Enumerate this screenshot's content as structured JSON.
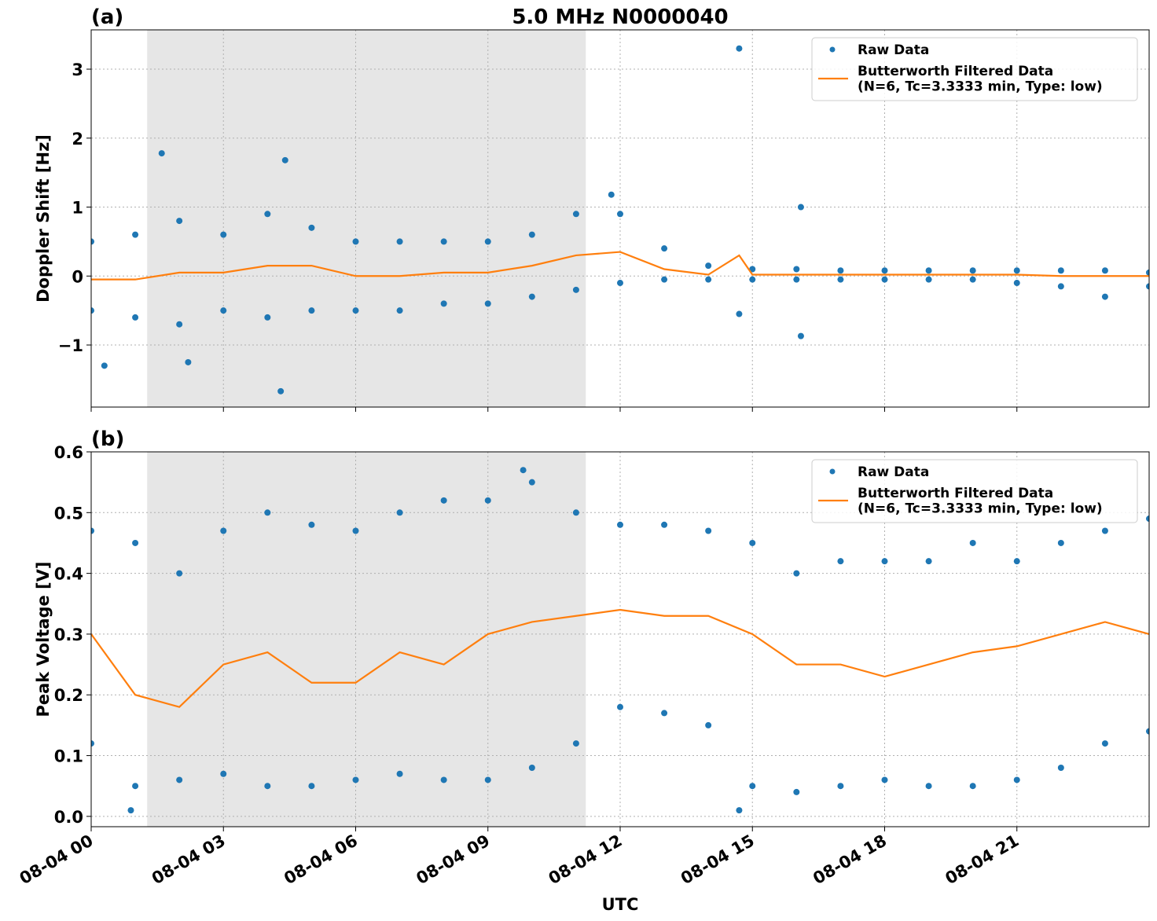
{
  "chart_data": [
    {
      "type": "scatter",
      "title": "5.0 MHz N0000040",
      "panel_label": "(a)",
      "ylabel": "Doppler Shift [Hz]",
      "xlim": [
        0,
        24
      ],
      "xticks": [
        0,
        3,
        6,
        9,
        12,
        15,
        18,
        21
      ],
      "ylim": [
        -1.9,
        3.57
      ],
      "yticks": [
        {
          "value": -1,
          "label": "−1"
        },
        0,
        1,
        2,
        3
      ],
      "shade": [
        1.27,
        11.22
      ],
      "grid": true,
      "legend": "upper right",
      "series": [
        {
          "name": "Raw Data",
          "color": "#1f77b4",
          "kind": "scatter",
          "x": [
            0,
            0,
            1,
            1,
            2,
            2,
            3,
            3,
            4,
            4,
            5,
            5,
            6,
            6,
            7,
            7,
            8,
            8,
            9,
            9,
            10,
            10,
            11,
            11,
            12,
            12,
            13,
            13,
            14,
            14,
            15,
            15,
            16,
            16,
            17,
            17,
            18,
            18,
            19,
            19,
            20,
            20,
            21,
            21,
            22,
            22,
            23,
            23,
            24,
            24,
            1.6,
            4.4,
            4.3,
            14.7,
            14.7,
            0.3,
            16.1,
            16.1,
            2.2,
            11.8
          ],
          "values": [
            0.5,
            -0.5,
            0.6,
            -0.6,
            0.8,
            -0.7,
            0.6,
            -0.5,
            0.9,
            -0.6,
            0.7,
            -0.5,
            0.5,
            -0.5,
            0.5,
            -0.5,
            0.5,
            -0.4,
            0.5,
            -0.4,
            0.6,
            -0.3,
            0.9,
            -0.2,
            0.9,
            -0.1,
            0.4,
            -0.05,
            0.15,
            -0.05,
            0.1,
            -0.05,
            0.1,
            -0.05,
            0.08,
            -0.05,
            0.08,
            -0.05,
            0.08,
            -0.05,
            0.08,
            -0.05,
            0.08,
            -0.1,
            0.08,
            -0.15,
            0.08,
            -0.3,
            0.05,
            -0.15,
            1.78,
            1.68,
            -1.67,
            3.3,
            -0.55,
            -1.3,
            1.0,
            -0.87,
            -1.25,
            1.18
          ]
        },
        {
          "name": "Butterworth Filtered Data\n(N=6, Tc=3.3333 min, Type: low)",
          "color": "#ff7f0e",
          "kind": "line",
          "x": [
            0,
            1,
            2,
            3,
            4,
            5,
            6,
            7,
            8,
            9,
            10,
            11,
            12,
            13,
            14,
            14.7,
            15,
            16,
            17,
            18,
            19,
            20,
            21,
            22,
            23,
            24
          ],
          "values": [
            -0.05,
            -0.05,
            0.05,
            0.05,
            0.15,
            0.15,
            0.0,
            0.0,
            0.05,
            0.05,
            0.15,
            0.3,
            0.35,
            0.1,
            0.02,
            0.3,
            0.02,
            0.02,
            0.02,
            0.02,
            0.02,
            0.02,
            0.02,
            0.0,
            0.0,
            0.0
          ]
        }
      ]
    },
    {
      "type": "scatter",
      "panel_label": "(b)",
      "ylabel": "Peak Voltage [V]",
      "xlabel": "UTC",
      "xlim": [
        0,
        24
      ],
      "xticks": [
        {
          "value": 0,
          "label": "08-04 00"
        },
        {
          "value": 3,
          "label": "08-04 03"
        },
        {
          "value": 6,
          "label": "08-04 06"
        },
        {
          "value": 9,
          "label": "08-04 09"
        },
        {
          "value": 12,
          "label": "08-04 12"
        },
        {
          "value": 15,
          "label": "08-04 15"
        },
        {
          "value": 18,
          "label": "08-04 18"
        },
        {
          "value": 21,
          "label": "08-04 21"
        }
      ],
      "ylim": [
        -0.017,
        0.6
      ],
      "yticks": [
        {
          "value": 0,
          "label": "0.0"
        },
        0.1,
        0.2,
        0.3,
        0.4,
        0.5,
        0.6
      ],
      "shade": [
        1.27,
        11.22
      ],
      "grid": true,
      "legend": "upper right",
      "series": [
        {
          "name": "Raw Data",
          "color": "#1f77b4",
          "kind": "scatter",
          "x": [
            0,
            0,
            1,
            1,
            2,
            2,
            3,
            3,
            4,
            4,
            5,
            5,
            6,
            6,
            7,
            7,
            8,
            8,
            9,
            9,
            10,
            10,
            11,
            11,
            12,
            12,
            13,
            13,
            14,
            14,
            15,
            15,
            16,
            16,
            17,
            17,
            18,
            18,
            19,
            19,
            20,
            20,
            21,
            21,
            22,
            22,
            23,
            23,
            24,
            24,
            14.7,
            9.8,
            0.9
          ],
          "values": [
            0.47,
            0.12,
            0.45,
            0.05,
            0.4,
            0.06,
            0.47,
            0.07,
            0.5,
            0.05,
            0.48,
            0.05,
            0.47,
            0.06,
            0.5,
            0.07,
            0.52,
            0.06,
            0.52,
            0.06,
            0.55,
            0.08,
            0.5,
            0.12,
            0.48,
            0.18,
            0.48,
            0.17,
            0.47,
            0.15,
            0.45,
            0.05,
            0.4,
            0.04,
            0.42,
            0.05,
            0.42,
            0.06,
            0.42,
            0.05,
            0.45,
            0.05,
            0.42,
            0.06,
            0.45,
            0.08,
            0.47,
            0.12,
            0.49,
            0.14,
            0.01,
            0.57,
            0.01
          ]
        },
        {
          "name": "Butterworth Filtered Data\n(N=6, Tc=3.3333 min, Type: low)",
          "color": "#ff7f0e",
          "kind": "line",
          "x": [
            0,
            1,
            2,
            3,
            4,
            5,
            6,
            7,
            8,
            9,
            10,
            11,
            12,
            13,
            14,
            15,
            16,
            17,
            18,
            19,
            20,
            21,
            22,
            23,
            24
          ],
          "values": [
            0.3,
            0.2,
            0.18,
            0.25,
            0.27,
            0.22,
            0.22,
            0.27,
            0.25,
            0.3,
            0.32,
            0.33,
            0.34,
            0.33,
            0.33,
            0.3,
            0.25,
            0.25,
            0.23,
            0.25,
            0.27,
            0.28,
            0.3,
            0.32,
            0.3
          ]
        }
      ]
    }
  ]
}
